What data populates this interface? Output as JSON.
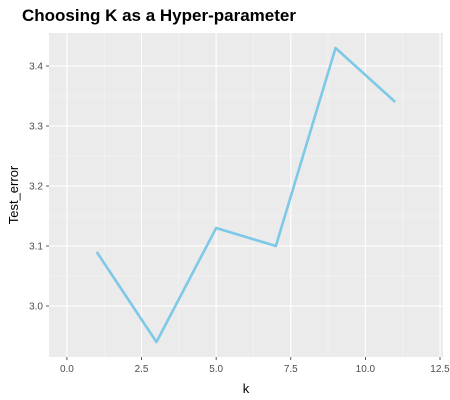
{
  "chart_data": {
    "type": "line",
    "title": "Choosing K as a Hyper-parameter",
    "xlabel": "k",
    "ylabel": "Test_error",
    "x": [
      1,
      3,
      5,
      7,
      9,
      11
    ],
    "series": [
      {
        "values": [
          3.09,
          2.94,
          3.13,
          3.1,
          3.43,
          3.34
        ]
      }
    ],
    "xlim": [
      -0.6,
      12.6
    ],
    "ylim": [
      2.915,
      3.455
    ],
    "x_ticks": [
      0.0,
      2.5,
      5.0,
      7.5,
      10.0,
      12.5
    ],
    "x_tick_labels": [
      "0.0",
      "2.5",
      "5.0",
      "7.5",
      "10.0",
      "12.5"
    ],
    "y_ticks": [
      3.0,
      3.1,
      3.2,
      3.3,
      3.4
    ],
    "y_tick_labels": [
      "3.0",
      "3.1",
      "3.2",
      "3.3",
      "3.4"
    ],
    "grid": true,
    "colors": {
      "line": "#7ec8e8",
      "panel": "#ebebeb",
      "grid_major": "#ffffff",
      "grid_minor": "#f5f5f5",
      "tick": "#333333"
    }
  }
}
